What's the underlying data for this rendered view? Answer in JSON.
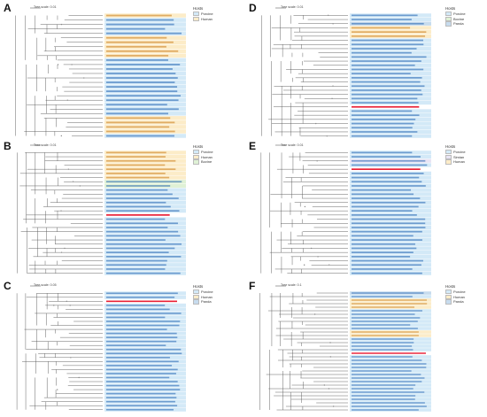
{
  "colors": {
    "porcine": "#d3e9f7",
    "human": "#fcecc8",
    "bovine": "#dff1d5",
    "simian": "#e8e4f4",
    "panda": "#c7dcee",
    "highlight_text": "#e8152b",
    "blue_text": "#1a5cae",
    "orange_text": "#c97812",
    "branch": "#555555"
  },
  "panels": [
    {
      "id": "A",
      "tree_scale": "Tree scale: 0.01",
      "legend_title": "Hosts",
      "hosts": [
        {
          "name": "Porcine",
          "color": "porcine"
        },
        {
          "name": "Human",
          "color": "human"
        }
      ],
      "top_label": "RVA/CHN/SCLS-2023/G4P[6]",
      "leaves": 28,
      "leaf_colors": [
        "h",
        "p",
        "p",
        "p",
        "p",
        "h",
        "h",
        "h",
        "h",
        "h",
        "p",
        "p",
        "p",
        "p",
        "p",
        "p",
        "p",
        "p",
        "p",
        "p",
        "p",
        "p",
        "p",
        "h",
        "h",
        "h",
        "h",
        "p"
      ]
    },
    {
      "id": "B",
      "tree_scale": "Tree scale: 0.01",
      "legend_title": "Hosts",
      "hosts": [
        {
          "name": "Porcine",
          "color": "porcine"
        },
        {
          "name": "Human",
          "color": "human"
        },
        {
          "name": "Bovine",
          "color": "bovine"
        }
      ],
      "top_label": "RVA/CHN/SCLS-2023/G4P[6]",
      "leaves": 30,
      "leaf_colors": [
        "h",
        "h",
        "h",
        "h",
        "h",
        "h",
        "h",
        "b",
        "b",
        "p",
        "p",
        "p",
        "p",
        "p",
        "p",
        "x",
        "p",
        "p",
        "p",
        "p",
        "p",
        "p",
        "p",
        "p",
        "p",
        "p",
        "p",
        "p",
        "p",
        "p"
      ]
    },
    {
      "id": "C",
      "tree_scale": "Tree scale: 0.05",
      "legend_title": "Hosts",
      "hosts": [
        {
          "name": "Porcine",
          "color": "porcine"
        },
        {
          "name": "Human",
          "color": "human"
        },
        {
          "name": "Panda",
          "color": "panda"
        }
      ],
      "top_label": "RVA/CHN/SCLS-2023/G4P[6]",
      "leaves": 30,
      "leaf_colors": [
        "p",
        "p",
        "x",
        "p",
        "p",
        "p",
        "p",
        "p",
        "p",
        "p",
        "p",
        "p",
        "p",
        "p",
        "p",
        "p",
        "p",
        "p",
        "p",
        "p",
        "p",
        "p",
        "p",
        "p",
        "p",
        "p",
        "p",
        "p",
        "p",
        "p"
      ]
    },
    {
      "id": "D",
      "tree_scale": "Tree scale: 0.01",
      "legend_title": "Hosts",
      "hosts": [
        {
          "name": "Porcine",
          "color": "porcine"
        },
        {
          "name": "Bovine",
          "color": "bovine"
        },
        {
          "name": "Panda",
          "color": "panda"
        }
      ],
      "top_label": "RVA/CHN/SCLS-2023/G4P[6]",
      "leaves": 30,
      "leaf_colors": [
        "p",
        "p",
        "d",
        "h",
        "h",
        "h",
        "p",
        "p",
        "p",
        "p",
        "p",
        "p",
        "p",
        "p",
        "p",
        "p",
        "p",
        "p",
        "p",
        "p",
        "p",
        "p",
        "x",
        "p",
        "p",
        "p",
        "p",
        "p",
        "p",
        "p"
      ]
    },
    {
      "id": "E",
      "tree_scale": "Tree scale: 0.01",
      "legend_title": "Hosts",
      "hosts": [
        {
          "name": "Porcine",
          "color": "porcine"
        },
        {
          "name": "Simian",
          "color": "simian"
        },
        {
          "name": "Human",
          "color": "human"
        }
      ],
      "top_label": "RVA/CHN/SCLS-2023/G4P[6]",
      "leaves": 30,
      "leaf_colors": [
        "p",
        "p",
        "s",
        "p",
        "x",
        "p",
        "p",
        "p",
        "p",
        "p",
        "p",
        "p",
        "p",
        "p",
        "p",
        "p",
        "p",
        "p",
        "p",
        "p",
        "p",
        "p",
        "p",
        "p",
        "p",
        "p",
        "p",
        "p",
        "p",
        "p"
      ]
    },
    {
      "id": "F",
      "tree_scale": "Tree scale: 0.1",
      "legend_title": "Hosts",
      "hosts": [
        {
          "name": "Porcine",
          "color": "porcine"
        },
        {
          "name": "Human",
          "color": "human"
        },
        {
          "name": "Panda",
          "color": "panda"
        }
      ],
      "top_label": "RVA/CHN/SCLS-2023/G4P[6]",
      "leaves": 34,
      "leaf_colors": [
        "d",
        "p",
        "h",
        "h",
        "h",
        "p",
        "p",
        "p",
        "p",
        "p",
        "p",
        "h",
        "h",
        "p",
        "p",
        "p",
        "p",
        "x",
        "p",
        "p",
        "p",
        "p",
        "p",
        "p",
        "p",
        "p",
        "p",
        "p",
        "p",
        "p",
        "p",
        "p",
        "p",
        "p"
      ]
    }
  ]
}
